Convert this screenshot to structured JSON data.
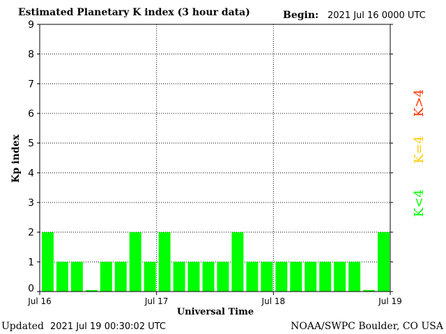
{
  "header": {
    "title": "Estimated Planetary K index (3 hour data)",
    "begin_label": "Begin:",
    "begin_value": "2021 Jul 16 0000 UTC"
  },
  "footer": {
    "updated_label": "Updated",
    "updated_value": "2021 Jul 19 00:30:02 UTC",
    "source": "NOAA/SWPC Boulder, CO USA"
  },
  "legend": {
    "high": {
      "label": "K>4",
      "color": "#ff3300"
    },
    "mid": {
      "label": "K=4",
      "color": "#ffcc00"
    },
    "low": {
      "label": "K<4",
      "color": "#00ff00"
    }
  },
  "chart_data": {
    "type": "bar",
    "title": "Estimated Planetary K index (3 hour data)",
    "xlabel": "Universal Time",
    "ylabel": "Kp index",
    "ylim": [
      0,
      9
    ],
    "yticks": [
      "0",
      "1",
      "2",
      "3",
      "4",
      "5",
      "6",
      "7",
      "8",
      "9"
    ],
    "x_tick_labels": [
      "Jul 16",
      "Jul 17",
      "Jul 18",
      "Jul 19"
    ],
    "interval_hours": 3,
    "values": [
      2,
      1,
      1,
      0.05,
      1,
      1,
      2,
      1,
      2,
      1,
      1,
      1,
      1,
      2,
      1,
      1,
      1,
      1,
      1,
      1,
      1,
      1,
      0.05,
      2
    ],
    "bar_color": "#00ff00",
    "grid": true,
    "legend_position": "right"
  }
}
